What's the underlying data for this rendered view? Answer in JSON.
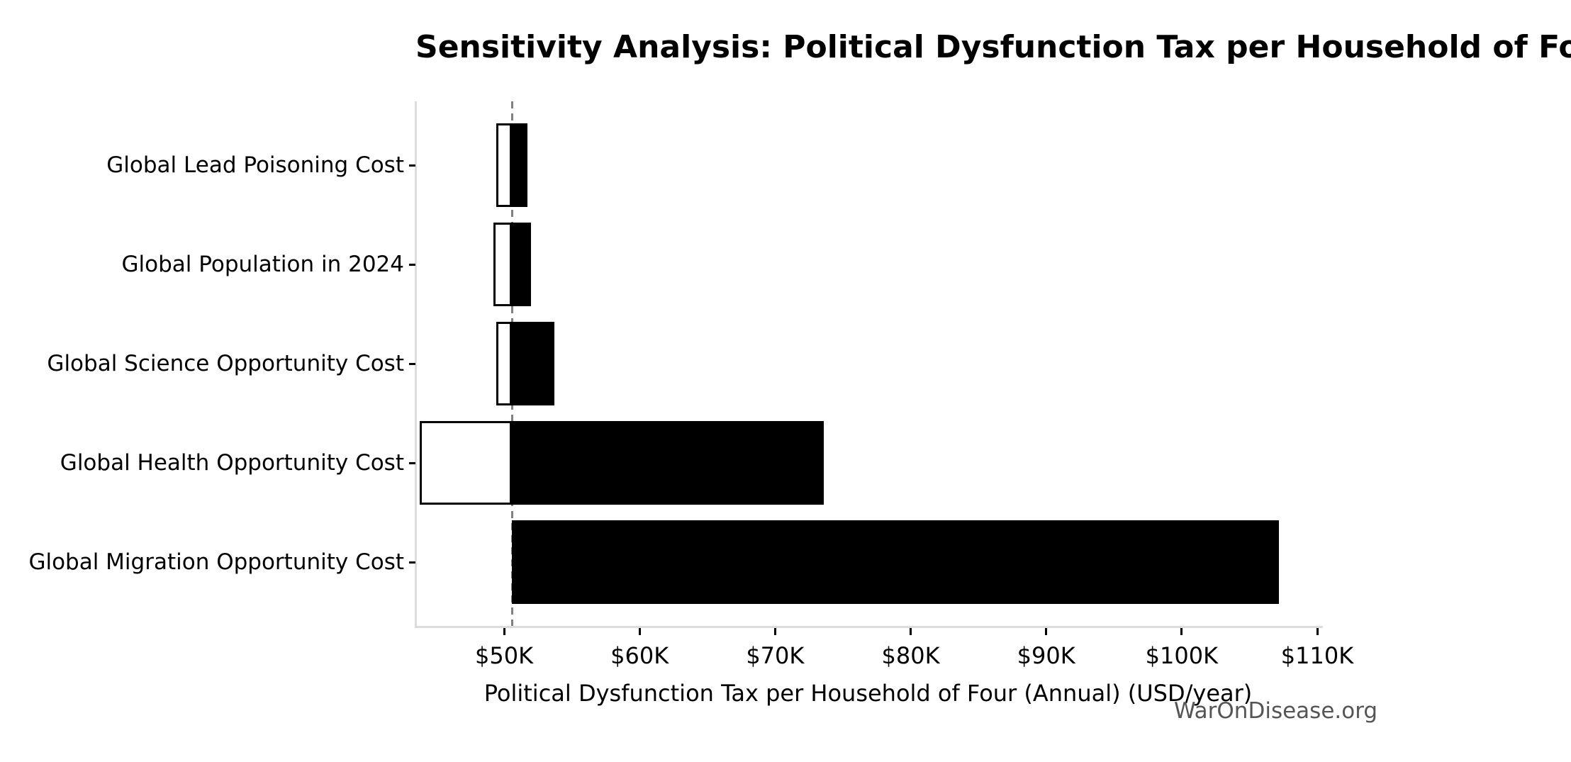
{
  "figure": {
    "watermark": "WarOnDisease.org"
  },
  "colors": {
    "bar_high_fill": "#000000",
    "bar_low_fill": "#ffffff",
    "bar_low_edge": "#000000",
    "baseline_line": "#808080",
    "spine": "#dcdcdc",
    "tick_mark": "#000000",
    "text": "#000000",
    "watermark_text": "#555555"
  },
  "chart_data": {
    "type": "bar",
    "variant": "tornado-sensitivity",
    "orientation": "horizontal",
    "title": "Sensitivity Analysis: Political Dysfunction Tax per Household of Four (Annual)",
    "xlabel": "Political Dysfunction Tax per Household of Four (Annual) (USD/year)",
    "ylabel": "",
    "categories": [
      "Global Lead Poisoning Cost",
      "Global Population in 2024",
      "Global Science Opportunity Cost",
      "Global Health Opportunity Cost",
      "Global Migration Opportunity Cost"
    ],
    "series": [
      {
        "name": "low",
        "style": "white-fill-black-border",
        "values_usd_per_year": [
          49400,
          49200,
          49400,
          43800,
          50600
        ]
      },
      {
        "name": "high",
        "style": "black-fill",
        "values_usd_per_year": [
          51700,
          52000,
          53700,
          73600,
          107200
        ]
      }
    ],
    "baseline_usd_per_year": 50600,
    "baseline_style": "dashed-gray-vertical-line",
    "xlim_usd_per_year": [
      43460,
      110260
    ],
    "xticks": {
      "values": [
        50000,
        60000,
        70000,
        80000,
        90000,
        100000,
        110000
      ],
      "labels": [
        "$50K",
        "$60K",
        "$70K",
        "$80K",
        "$90K",
        "$100K",
        "$110K"
      ]
    },
    "grid": false,
    "legend": null
  }
}
